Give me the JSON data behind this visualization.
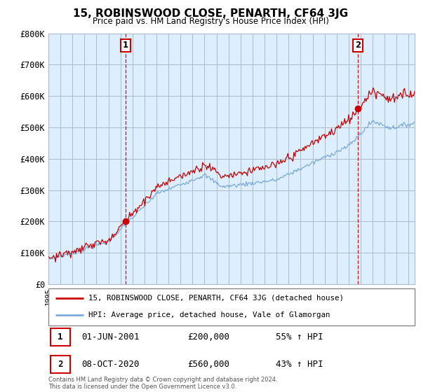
{
  "title": "15, ROBINSWOOD CLOSE, PENARTH, CF64 3JG",
  "subtitle": "Price paid vs. HM Land Registry's House Price Index (HPI)",
  "legend_line1": "15, ROBINSWOOD CLOSE, PENARTH, CF64 3JG (detached house)",
  "legend_line2": "HPI: Average price, detached house, Vale of Glamorgan",
  "annotation1_date": "01-JUN-2001",
  "annotation1_price": "£200,000",
  "annotation1_pct": "55% ↑ HPI",
  "annotation1_year": 2001.42,
  "annotation1_value": 200000,
  "annotation2_date": "08-OCT-2020",
  "annotation2_price": "£560,000",
  "annotation2_pct": "43% ↑ HPI",
  "annotation2_year": 2020.77,
  "annotation2_value": 560000,
  "footer": "Contains HM Land Registry data © Crown copyright and database right 2024.\nThis data is licensed under the Open Government Licence v3.0.",
  "xmin": 1995,
  "xmax": 2025.5,
  "ymin": 0,
  "ymax": 800000,
  "yticks": [
    0,
    100000,
    200000,
    300000,
    400000,
    500000,
    600000,
    700000,
    800000
  ],
  "ytick_labels": [
    "£0",
    "£100K",
    "£200K",
    "£300K",
    "£400K",
    "£500K",
    "£600K",
    "£700K",
    "£800K"
  ],
  "red_color": "#cc0000",
  "blue_color": "#7aaadd",
  "plot_bg_color": "#ddeeff",
  "background_color": "#ffffff",
  "grid_color": "#aabbcc",
  "annotation_box_color": "#cc0000"
}
